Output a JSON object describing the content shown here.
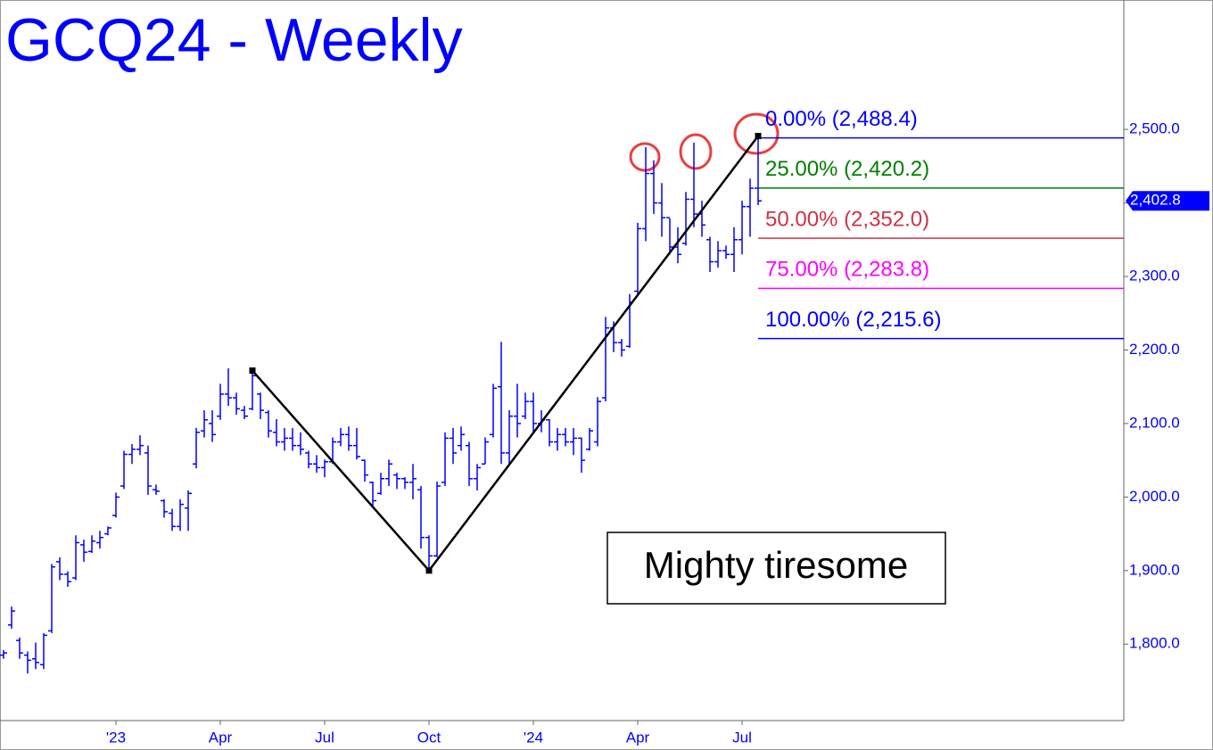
{
  "chart_data": {
    "type": "ohlc",
    "title": "GCQ24 - Weekly",
    "color": "#0000ff",
    "categories": [
      null,
      null,
      null,
      null,
      null,
      null,
      null,
      null,
      null,
      null,
      null,
      null,
      null,
      null,
      "'23",
      null,
      null,
      null,
      null,
      null,
      null,
      null,
      null,
      null,
      null,
      null,
      null,
      "Apr",
      null,
      null,
      null,
      null,
      null,
      null,
      null,
      null,
      null,
      null,
      null,
      null,
      "Jul",
      null,
      null,
      null,
      null,
      null,
      null,
      null,
      null,
      null,
      null,
      null,
      null,
      "Oct",
      null,
      null,
      null,
      null,
      null,
      null,
      null,
      null,
      null,
      null,
      null,
      null,
      "'24",
      null,
      null,
      null,
      null,
      null,
      null,
      null,
      null,
      null,
      null,
      null,
      null,
      "Apr",
      null,
      null,
      null,
      null,
      null,
      null,
      null,
      null,
      null,
      null,
      null,
      null,
      "Jul",
      null,
      null
    ],
    "open": [
      1785,
      1826,
      1805,
      1785,
      1780,
      1772,
      1818,
      1912,
      1895,
      1890,
      1935,
      1926,
      1938,
      1950,
      1975,
      2015,
      2058,
      2065,
      2060,
      2010,
      1995,
      1978,
      1960,
      1985,
      2045,
      2090,
      2100,
      2110,
      2140,
      2135,
      2118,
      2120,
      2140,
      2115,
      2088,
      2075,
      2080,
      2070,
      2060,
      2045,
      2040,
      2048,
      2075,
      2085,
      2070,
      2050,
      2020,
      2005,
      2025,
      2030,
      2025,
      2020,
      2010,
      1945,
      1920,
      2020,
      2080,
      2070,
      2070,
      2025,
      2045,
      2085,
      2150,
      2060,
      2110,
      2110,
      2130,
      2100,
      2105,
      2075,
      2085,
      2075,
      2080,
      2065,
      2075,
      2135,
      2230,
      2210,
      2205,
      2280,
      2365,
      2440,
      2400,
      2380,
      2340,
      2345,
      2405,
      2385,
      2350,
      2320,
      2335,
      2330,
      2350,
      2395,
      2420
    ],
    "high": [
      1792,
      1851,
      1809,
      1790,
      1802,
      1815,
      1909,
      1918,
      1899,
      1948,
      1942,
      1948,
      1954,
      1960,
      2006,
      2063,
      2072,
      2084,
      2070,
      2017,
      1997,
      1984,
      1997,
      2009,
      2094,
      2118,
      2118,
      2154,
      2175,
      2142,
      2124,
      2172,
      2142,
      2118,
      2106,
      2094,
      2094,
      2088,
      2063,
      2057,
      2051,
      2081,
      2094,
      2096,
      2094,
      2051,
      2021,
      2033,
      2051,
      2033,
      2027,
      2045,
      2015,
      1948,
      2021,
      2088,
      2094,
      2096,
      2075,
      2045,
      2081,
      2154,
      2211,
      2118,
      2154,
      2142,
      2142,
      2118,
      2106,
      2094,
      2094,
      2094,
      2081,
      2094,
      2136,
      2245,
      2239,
      2215,
      2276,
      2373,
      2476,
      2458,
      2427,
      2379,
      2367,
      2415,
      2482,
      2403,
      2354,
      2348,
      2342,
      2367,
      2403,
      2433,
      2488.4
    ],
    "low": [
      1780,
      1821,
      1780,
      1760,
      1766,
      1766,
      1815,
      1887,
      1878,
      1887,
      1912,
      1924,
      1930,
      1948,
      1972,
      2011,
      2045,
      2057,
      2003,
      2003,
      1972,
      1954,
      1954,
      1954,
      2039,
      2081,
      2075,
      2105,
      2124,
      2112,
      2106,
      2118,
      2106,
      2081,
      2069,
      2063,
      2063,
      2057,
      2039,
      2033,
      2027,
      2045,
      2069,
      2063,
      2051,
      2021,
      1987,
      2003,
      2015,
      2011,
      2011,
      1997,
      1930,
      1899,
      1918,
      2015,
      2045,
      2063,
      2015,
      2009,
      2045,
      2081,
      2045,
      2045,
      2081,
      2106,
      2088,
      2088,
      2069,
      2063,
      2069,
      2057,
      2033,
      2063,
      2069,
      2130,
      2197,
      2191,
      2203,
      2276,
      2348,
      2385,
      2354,
      2330,
      2318,
      2342,
      2367,
      2354,
      2306,
      2312,
      2324,
      2306,
      2330,
      2354,
      2397
    ],
    "close": [
      1788,
      1845,
      1788,
      1778,
      1775,
      1812,
      1905,
      1895,
      1885,
      1938,
      1925,
      1940,
      1945,
      1958,
      2000,
      2058,
      2065,
      2070,
      2015,
      2008,
      1980,
      1960,
      1990,
      2005,
      2088,
      2105,
      2085,
      2140,
      2135,
      2120,
      2110,
      2165,
      2118,
      2090,
      2075,
      2080,
      2070,
      2065,
      2045,
      2040,
      2048,
      2075,
      2085,
      2070,
      2055,
      2030,
      1995,
      2025,
      2045,
      2025,
      2020,
      2025,
      1945,
      1920,
      2015,
      2080,
      2060,
      2085,
      2025,
      2040,
      2075,
      2148,
      2060,
      2110,
      2100,
      2130,
      2100,
      2105,
      2075,
      2085,
      2075,
      2080,
      2050,
      2090,
      2130,
      2230,
      2210,
      2200,
      2265,
      2365,
      2440,
      2400,
      2380,
      2340,
      2330,
      2405,
      2385,
      2370,
      2320,
      2335,
      2330,
      2350,
      2395,
      2420,
      2402.8
    ],
    "ylim": [
      1696,
      2676
    ],
    "yticks": [
      {
        "value": 1800,
        "label": "1,800.0"
      },
      {
        "value": 1900,
        "label": "1,900.0"
      },
      {
        "value": 2000,
        "label": "2,000.0"
      },
      {
        "value": 2100,
        "label": "2,100.0"
      },
      {
        "value": 2200,
        "label": "2,200.0"
      },
      {
        "value": 2300,
        "label": "2,300.0"
      },
      {
        "value": 2400,
        "label": "2,400.0"
      },
      {
        "value": 2500,
        "label": "2,500.0"
      }
    ],
    "last_price": {
      "value": 2402.8,
      "label": "2,402.8"
    },
    "fib_levels": [
      {
        "label": "0.00% (2,488.4)",
        "value": 2488.4,
        "color": "#0000ff"
      },
      {
        "label": "25.00% (2,420.2)",
        "value": 2420.2,
        "color": "#008000"
      },
      {
        "label": "50.00% (2,352.0)",
        "value": 2352.0,
        "color": "#cc3344"
      },
      {
        "label": "75.00% (2,283.8)",
        "value": 2283.8,
        "color": "#ff00ff"
      },
      {
        "label": "100.00% (2,215.6)",
        "value": 2215.6,
        "color": "#0000ff"
      }
    ],
    "trendline": {
      "x": [
        31,
        53,
        94
      ],
      "y": [
        2172,
        1900,
        2491
      ]
    },
    "annotation": "Mighty tiresome"
  }
}
